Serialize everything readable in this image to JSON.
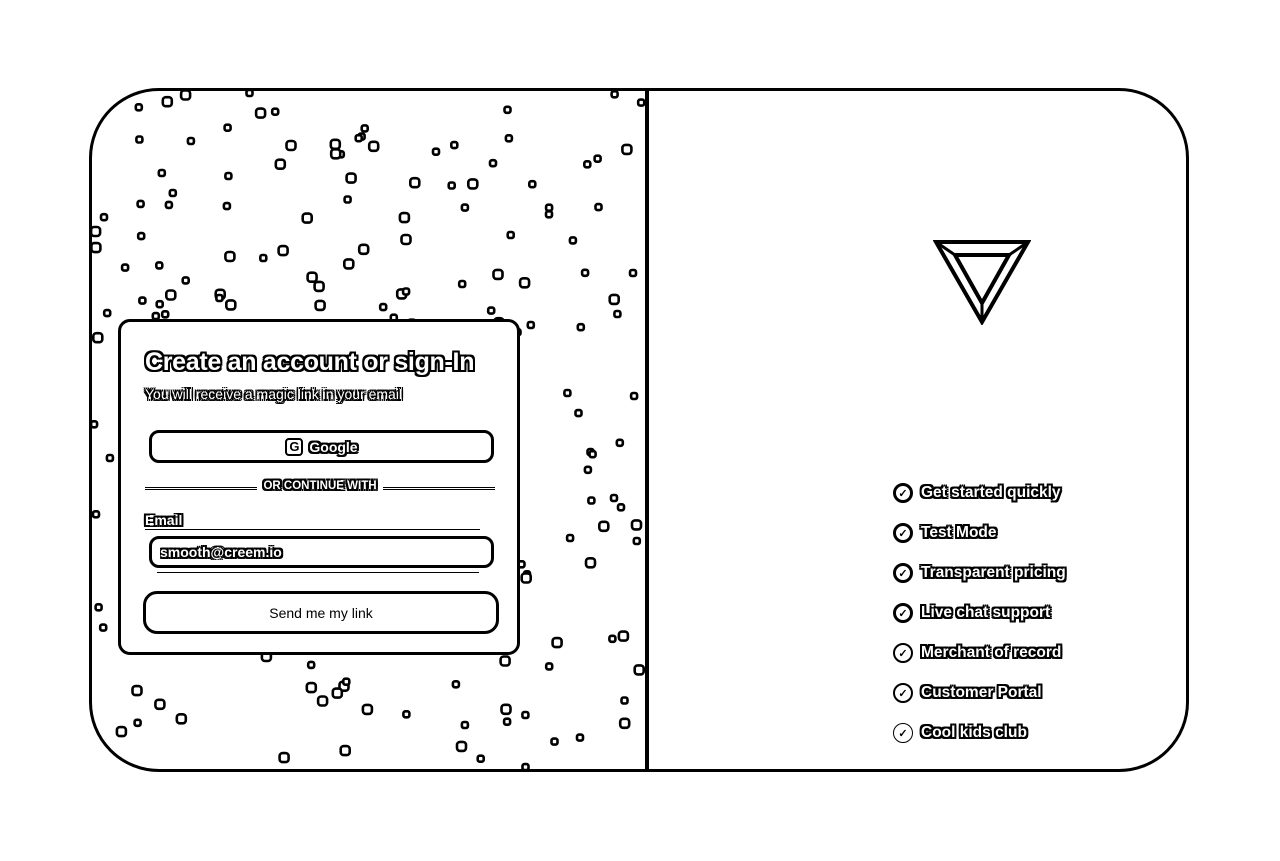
{
  "auth": {
    "title": "Create an account or sign-In",
    "subtitle": "You will receive a magic link in your email",
    "google_label": "Google",
    "google_icon_letter": "G",
    "divider_text": "OR CONTINUE WITH",
    "email_label": "Email",
    "email_value": "smooth@creem.io",
    "submit_label": "Send me my link"
  },
  "features": [
    {
      "label": "Get started quickly",
      "icon": "check-circle-icon"
    },
    {
      "label": "Test Mode",
      "icon": "check-circle-icon"
    },
    {
      "label": "Transparent pricing",
      "icon": "check-circle-icon"
    },
    {
      "label": "Live chat support",
      "icon": "check-circle-icon"
    },
    {
      "label": "Merchant of record",
      "icon": "check-circle-icon"
    },
    {
      "label": "Customer Portal",
      "icon": "check-circle-icon"
    },
    {
      "label": "Cool kids club",
      "icon": "check-circle-icon"
    }
  ],
  "logo_icon": "triangle-logo-icon",
  "colors": {
    "ink": "#000000",
    "paper": "#ffffff"
  }
}
